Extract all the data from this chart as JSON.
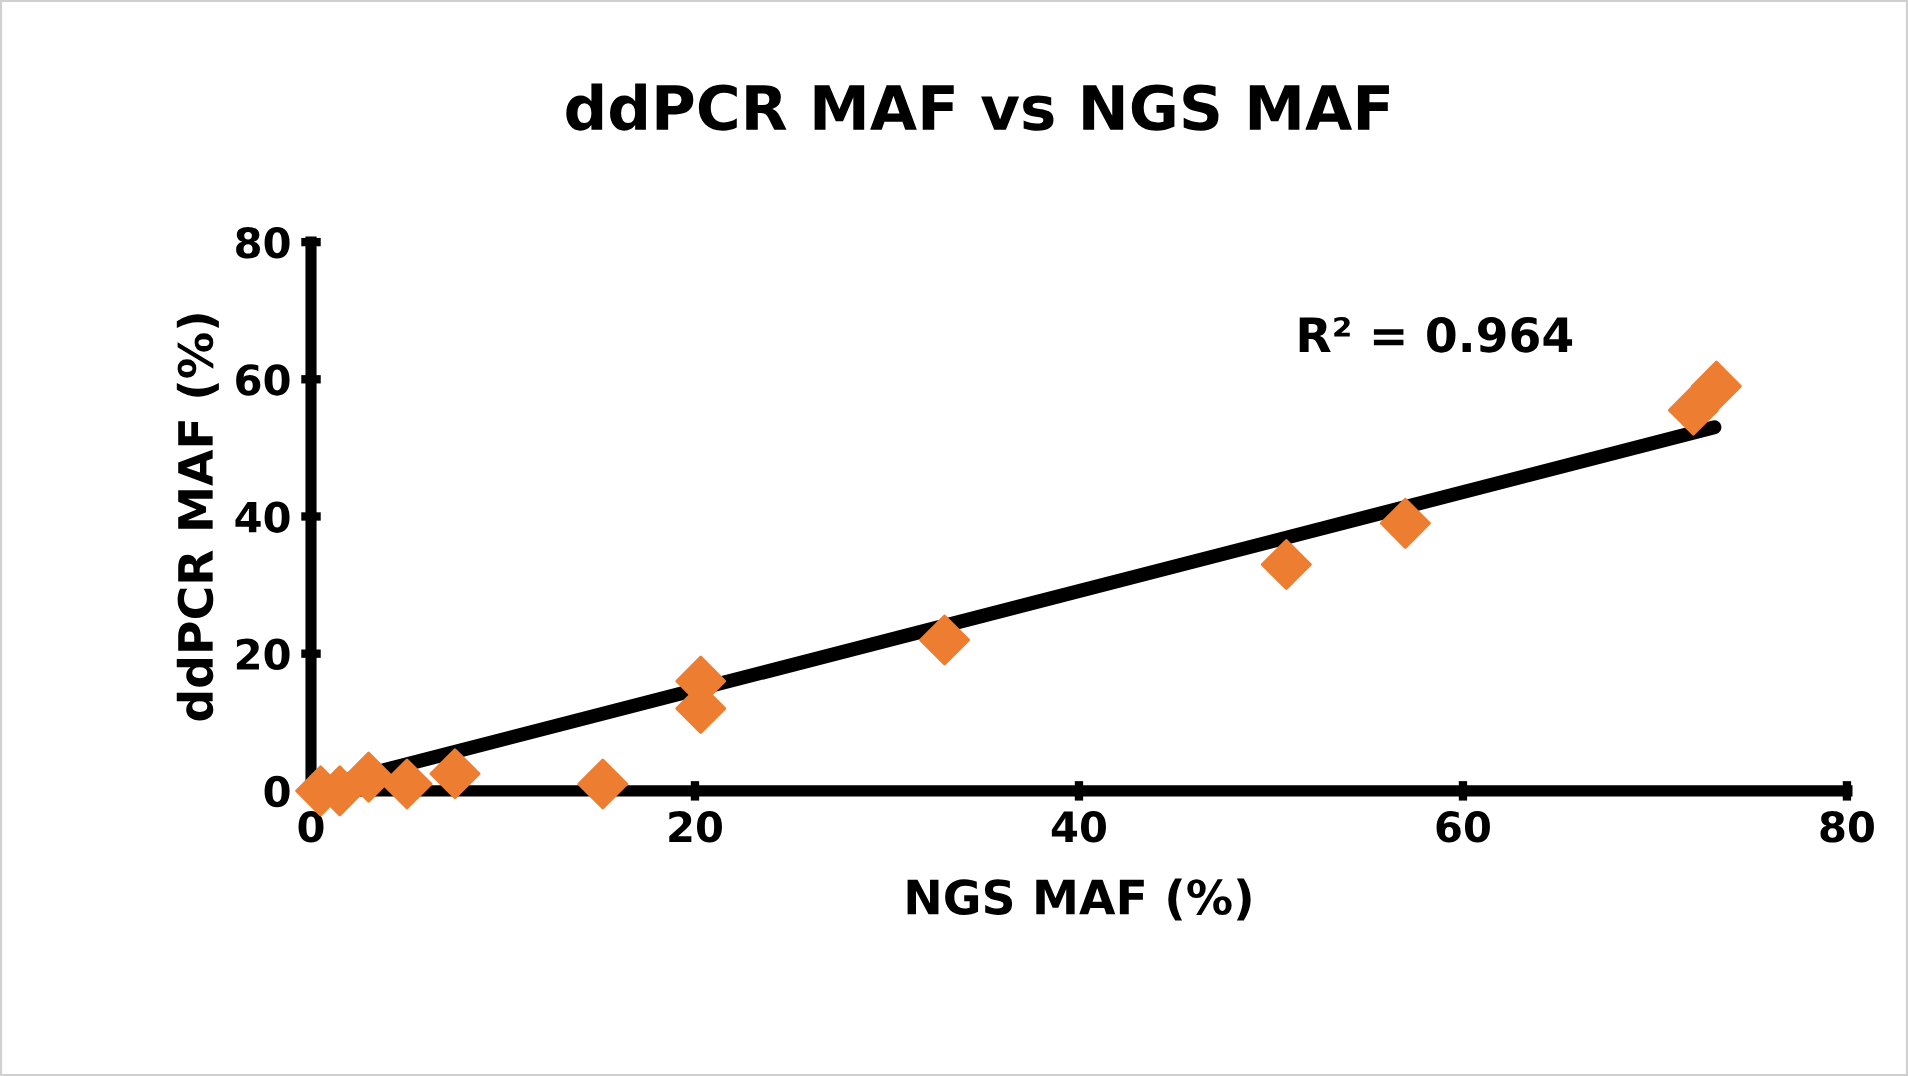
{
  "chart_data": {
    "type": "scatter",
    "title": "ddPCR MAF vs NGS MAF",
    "xlabel": "NGS MAF (%)",
    "ylabel": "ddPCR MAF (%)",
    "series": [
      {
        "color": "#ed7d31",
        "marker": "diamond",
        "x": [
          0.5,
          1.5,
          3,
          5,
          7.5,
          15.2,
          20.3,
          20.3,
          33,
          50.8,
          57,
          72,
          73.2
        ],
        "values": [
          0,
          0,
          2,
          1,
          2.5,
          1,
          16,
          12,
          22,
          33,
          39,
          55.5,
          59
        ]
      },
      {
        "type": "line",
        "color": "#000000",
        "marker": "none",
        "line_style": "solid",
        "x": [
          0.3,
          73.1
        ],
        "values": [
          0.5,
          53
        ]
      }
    ],
    "annotations": [
      "R² = 0.964"
    ],
    "xlim": [
      0,
      80
    ],
    "ylim": [
      0,
      80
    ],
    "xticks": [
      0,
      20,
      40,
      60,
      80
    ],
    "yticks": [
      0,
      20,
      40,
      60,
      80
    ],
    "grid": false,
    "legend": false
  }
}
